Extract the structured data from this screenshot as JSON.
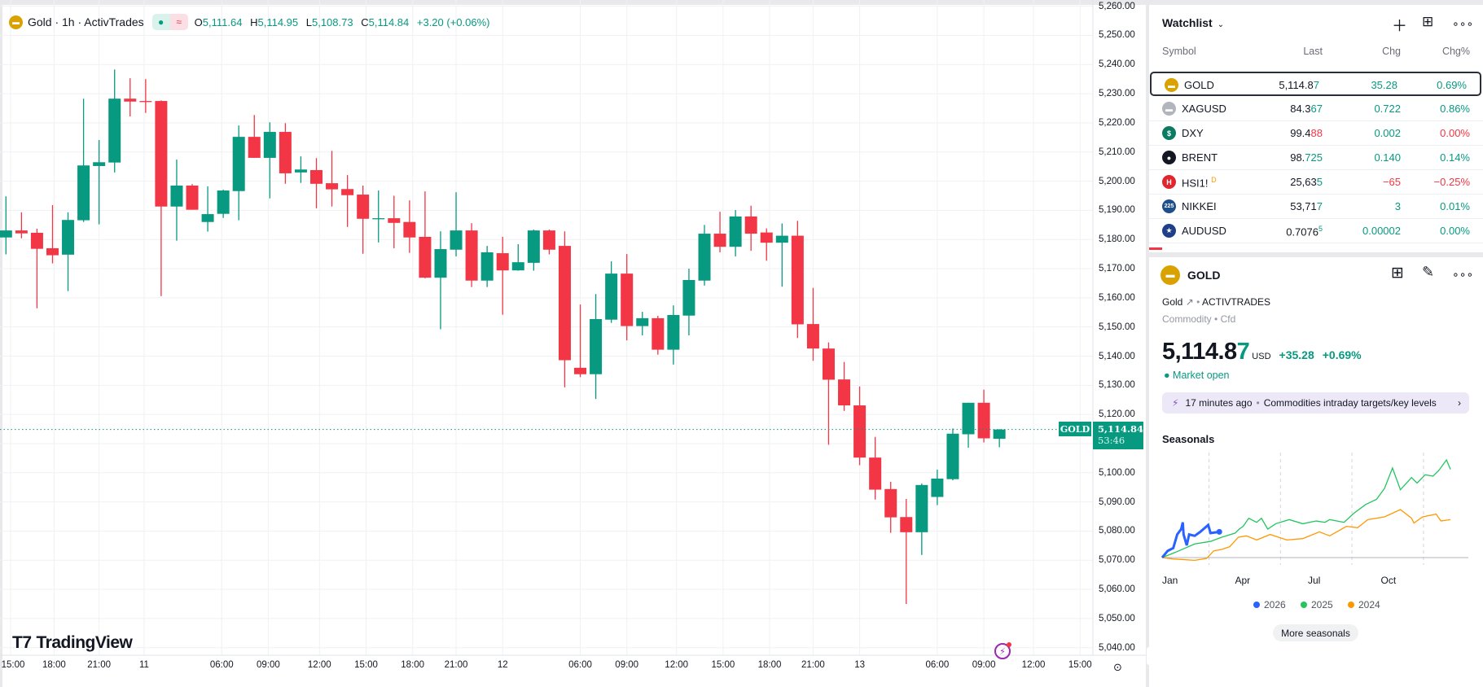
{
  "chart": {
    "legend": {
      "icon": "gold-bars-icon",
      "title": "Gold · 1h · ActivTrades",
      "open_label": "O",
      "open": "5,111.64",
      "high_label": "H",
      "high": "5,114.95",
      "low_label": "L",
      "low": "5,108.73",
      "close_label": "C",
      "close": "5,114.84",
      "change": "+3.20 (+0.06%)"
    },
    "symbol_tag": "GOLD",
    "last_price": "5,114.84",
    "last_price_value": 5114.84,
    "countdown": "53:46",
    "logo": "TradingView",
    "colors": {
      "up": "#089981",
      "down": "#f23645"
    },
    "price_ticks": [
      "5,260.00",
      "5,250.00",
      "5,240.00",
      "5,230.00",
      "5,220.00",
      "5,210.00",
      "5,200.00",
      "5,190.00",
      "5,180.00",
      "5,170.00",
      "5,160.00",
      "5,150.00",
      "5,140.00",
      "5,130.00",
      "5,120.00",
      "5,100.00",
      "5,090.00",
      "5,080.00",
      "5,070.00",
      "5,060.00",
      "5,050.00",
      "5,040.00"
    ],
    "time_ticks": [
      {
        "label": "15:00",
        "bar": 1.3
      },
      {
        "label": "18:00",
        "bar": 4.1
      },
      {
        "label": "21:00",
        "bar": 7
      },
      {
        "label": "11",
        "bar": 9.9
      },
      {
        "label": "06:00",
        "bar": 14.9
      },
      {
        "label": "09:00",
        "bar": 17.9
      },
      {
        "label": "12:00",
        "bar": 21.2
      },
      {
        "label": "15:00",
        "bar": 24.2
      },
      {
        "label": "18:00",
        "bar": 27.2
      },
      {
        "label": "21:00",
        "bar": 30
      },
      {
        "label": "12",
        "bar": 33
      },
      {
        "label": "06:00",
        "bar": 38
      },
      {
        "label": "09:00",
        "bar": 41
      },
      {
        "label": "12:00",
        "bar": 44.2
      },
      {
        "label": "15:00",
        "bar": 47.2
      },
      {
        "label": "18:00",
        "bar": 50.2
      },
      {
        "label": "21:00",
        "bar": 53
      },
      {
        "label": "13",
        "bar": 56
      },
      {
        "label": "06:00",
        "bar": 61
      },
      {
        "label": "09:00",
        "bar": 64
      },
      {
        "label": "12:00",
        "bar": 67.2
      },
      {
        "label": "15:00",
        "bar": 70.2
      }
    ]
  },
  "chart_data": {
    "type": "candlestick",
    "title": "Gold · 1h · ActivTrades",
    "ylim": [
      5037,
      5261
    ],
    "ohlc": [
      [
        5180.7,
        5194.8,
        5174.9,
        5183.1
      ],
      [
        5183.1,
        5189.3,
        5180.4,
        5182.1
      ],
      [
        5182.3,
        5183.7,
        5156.4,
        5176.8
      ],
      [
        5177,
        5191.8,
        5171.8,
        5174.6
      ],
      [
        5174.8,
        5189.3,
        5162.3,
        5186.7
      ],
      [
        5186.6,
        5228.3,
        5186,
        5205.4
      ],
      [
        5205.2,
        5214.1,
        5185.2,
        5206.5
      ],
      [
        5206.4,
        5238.3,
        5203,
        5228.3
      ],
      [
        5228.3,
        5235.3,
        5222.2,
        5227.3
      ],
      [
        5227.5,
        5235,
        5223.4,
        5227.4
      ],
      [
        5227.5,
        5227.7,
        5160.6,
        5191.3
      ],
      [
        5191.3,
        5207.4,
        5179.6,
        5198.5
      ],
      [
        5198.5,
        5199,
        5190.2,
        5190.2
      ],
      [
        5186,
        5198.2,
        5182.7,
        5188.7
      ],
      [
        5188.8,
        5197.1,
        5187.4,
        5196.8
      ],
      [
        5196.6,
        5219.1,
        5186.6,
        5215.2
      ],
      [
        5215.2,
        5222.7,
        5208,
        5208
      ],
      [
        5208,
        5220.2,
        5194.1,
        5216.9
      ],
      [
        5216.9,
        5219.9,
        5199.1,
        5202.7
      ],
      [
        5203,
        5208.5,
        5199.4,
        5204
      ],
      [
        5203.8,
        5207.9,
        5190.7,
        5199.1
      ],
      [
        5199.3,
        5210.4,
        5191.3,
        5197.2
      ],
      [
        5197.3,
        5202.1,
        5184.3,
        5195.2
      ],
      [
        5195.4,
        5198.5,
        5175.1,
        5187.1
      ],
      [
        5187.1,
        5196.8,
        5179,
        5187.3
      ],
      [
        5187.3,
        5195,
        5177,
        5185.7
      ],
      [
        5186,
        5193.4,
        5175.4,
        5180.7
      ],
      [
        5180.9,
        5196.5,
        5166.7,
        5166.9
      ],
      [
        5166.9,
        5182.8,
        5149.2,
        5176.7
      ],
      [
        5176.5,
        5196.2,
        5174.2,
        5183.1
      ],
      [
        5183.1,
        5185.6,
        5163.7,
        5165.9
      ],
      [
        5165.9,
        5177.8,
        5163.7,
        5175.6
      ],
      [
        5175.3,
        5180.9,
        5154.2,
        5169.4
      ],
      [
        5169.4,
        5178.4,
        5169.3,
        5172.2
      ],
      [
        5172,
        5183.4,
        5169.3,
        5183.1
      ],
      [
        5183.1,
        5183.4,
        5174.9,
        5176.5
      ],
      [
        5177.8,
        5182.8,
        5129.3,
        5138.6
      ],
      [
        5136,
        5157.7,
        5132.8,
        5133.8
      ],
      [
        5133.8,
        5161.3,
        5125.3,
        5152.7
      ],
      [
        5152.5,
        5172.5,
        5151.4,
        5168.3
      ],
      [
        5168.3,
        5175,
        5145.4,
        5150.3
      ],
      [
        5150.3,
        5155.2,
        5147.1,
        5153
      ],
      [
        5153,
        5153.8,
        5140.5,
        5142.2
      ],
      [
        5142.2,
        5157.4,
        5137.1,
        5154.1
      ],
      [
        5153.9,
        5170,
        5147.1,
        5166.1
      ],
      [
        5165.9,
        5185,
        5164.2,
        5182
      ],
      [
        5182,
        5189.5,
        5175.6,
        5177.5
      ],
      [
        5177.5,
        5190.1,
        5174.2,
        5187.9
      ],
      [
        5187.9,
        5191.6,
        5176.1,
        5182
      ],
      [
        5182.4,
        5183.8,
        5172.7,
        5178.9
      ],
      [
        5178.9,
        5185.5,
        5163.8,
        5181.3
      ],
      [
        5181.3,
        5186.4,
        5146.2,
        5150.9
      ],
      [
        5151,
        5163.4,
        5138.4,
        5142.6
      ],
      [
        5142.6,
        5144.7,
        5109.6,
        5131.9
      ],
      [
        5132,
        5138,
        5121.2,
        5123.1
      ],
      [
        5123.1,
        5129.6,
        5102.6,
        5105.2
      ],
      [
        5105.2,
        5112.3,
        5090.8,
        5094.2
      ],
      [
        5094.4,
        5096.9,
        5079.4,
        5084.7
      ],
      [
        5084.8,
        5091,
        5055,
        5079.6
      ],
      [
        5079.6,
        5096.3,
        5071.8,
        5095.8
      ],
      [
        5091.7,
        5101.1,
        5088.9,
        5098
      ],
      [
        5097.8,
        5115.2,
        5097.4,
        5113.4
      ],
      [
        5113.2,
        5124,
        5108.6,
        5124
      ],
      [
        5124,
        5128.5,
        5110.4,
        5111.8
      ],
      [
        5111.64,
        5114.95,
        5108.73,
        5114.84
      ]
    ]
  },
  "watchlist": {
    "title": "Watchlist",
    "add_icon": "plus-icon",
    "layout_icon": "table-icon",
    "more_icon": "more-icon",
    "columns": {
      "symbol": "Symbol",
      "last": "Last",
      "chg": "Chg",
      "chgp": "Chg%"
    },
    "rows": [
      {
        "symbol": "GOLD",
        "icon": "gold-icon",
        "icon_color": "#d9a200",
        "icon_text": "▬",
        "last_base": "5,114.8",
        "last_hi": "7",
        "hi_dir": "g",
        "chg": "35.28",
        "chgp": "0.69%",
        "dir": "g",
        "chgp_dir": "g",
        "selected": true
      },
      {
        "symbol": "XAGUSD",
        "icon": "silver-icon",
        "icon_color": "#b2b5be",
        "icon_text": "▬",
        "last_base": "84.3",
        "last_hi": "67",
        "hi_dir": "g",
        "chg": "0.722",
        "chgp": "0.86%",
        "dir": "g",
        "chgp_dir": "g"
      },
      {
        "symbol": "DXY",
        "icon": "dollar-icon",
        "icon_color": "#0b7a63",
        "icon_text": "$",
        "last_base": "99.4",
        "last_hi": "88",
        "hi_dir": "r",
        "chg": "0.002",
        "chgp": "0.00%",
        "dir": "g",
        "chgp_dir": "r"
      },
      {
        "symbol": "BRENT",
        "icon": "oil-drop-icon",
        "icon_color": "#131722",
        "icon_text": "●",
        "last_base": "98.",
        "last_hi": "725",
        "hi_dir": "g",
        "chg": "0.140",
        "chgp": "0.14%",
        "dir": "g",
        "chgp_dir": "g"
      },
      {
        "symbol": "HSI1!",
        "badge": "D",
        "icon": "hsi-icon",
        "icon_color": "#e0252f",
        "icon_text": "H",
        "last_base": "25,63",
        "last_hi": "5",
        "hi_dir": "g",
        "chg": "−65",
        "chgp": "−0.25%",
        "dir": "r",
        "chgp_dir": "r"
      },
      {
        "symbol": "NIKKEI",
        "icon": "nikkei-225-icon",
        "icon_color": "#1f4f8b",
        "icon_text": "225",
        "last_base": "53,71",
        "last_hi": "7",
        "hi_dir": "g",
        "chg": "3",
        "chgp": "0.01%",
        "dir": "g",
        "chgp_dir": "g"
      },
      {
        "symbol": "AUDUSD",
        "icon": "aud-usd-flag-icon",
        "icon_color": "#1f3f8b",
        "icon_text": "★",
        "last_base": "0.7076",
        "last_hi": "5",
        "hi_dir": "g",
        "sup": true,
        "chg": "0.00002",
        "chgp": "0.00%",
        "dir": "g",
        "chgp_dir": "g"
      }
    ]
  },
  "details": {
    "symbol": "GOLD",
    "name": "Gold",
    "exchange": "ACTIVTRADES",
    "type": "Commodity",
    "subtype": "Cfd",
    "price_base": "5,114.8",
    "price_hi": "7",
    "currency": "USD",
    "change": "+35.28",
    "change_pct": "+0.69%",
    "status": "Market open",
    "news": {
      "time": "17 minutes ago",
      "headline": "Commodities intraday targets/key levels"
    },
    "seasonals_title": "Seasonals",
    "months": [
      "Jan",
      "Apr",
      "Jul",
      "Oct"
    ],
    "more_button": "More seasonals",
    "seasonals": {
      "x_unit": "day of year",
      "y_unit": "% change",
      "ylim": [
        -5,
        72
      ],
      "series": [
        {
          "name": "2026",
          "color": "#2962ff",
          "points": [
            [
              0,
              0
            ],
            [
              7,
              4.9
            ],
            [
              14,
              6.9
            ],
            [
              19,
              16.8
            ],
            [
              24,
              20.7
            ],
            [
              26,
              25.6
            ],
            [
              27,
              16.8
            ],
            [
              31,
              8.9
            ],
            [
              34,
              16.8
            ],
            [
              41,
              15.8
            ],
            [
              48,
              18.7
            ],
            [
              58,
              23.7
            ],
            [
              61,
              17.8
            ],
            [
              72,
              18.7
            ]
          ]
        },
        {
          "name": "2025",
          "color": "#22c55e",
          "points": [
            [
              0,
              0
            ],
            [
              17,
              3.9
            ],
            [
              41,
              9.9
            ],
            [
              61,
              11.8
            ],
            [
              75,
              14.8
            ],
            [
              92,
              17.8
            ],
            [
              97,
              20.7
            ],
            [
              102,
              22.7
            ],
            [
              109,
              28.6
            ],
            [
              119,
              25.6
            ],
            [
              125,
              28.6
            ],
            [
              133,
              20.7
            ],
            [
              143,
              24.6
            ],
            [
              160,
              27.6
            ],
            [
              177,
              24.6
            ],
            [
              194,
              26.6
            ],
            [
              205,
              25.6
            ],
            [
              211,
              27.6
            ],
            [
              229,
              25.6
            ],
            [
              242,
              32.5
            ],
            [
              256,
              38.5
            ],
            [
              270,
              42.4
            ],
            [
              280,
              50.3
            ],
            [
              290,
              65.1
            ],
            [
              300,
              49.3
            ],
            [
              314,
              58.2
            ],
            [
              321,
              54.2
            ],
            [
              331,
              60.2
            ],
            [
              341,
              59.2
            ],
            [
              348,
              63.1
            ],
            [
              358,
              71
            ],
            [
              363,
              64.1
            ]
          ]
        },
        {
          "name": "2024",
          "color": "#ff9800",
          "points": [
            [
              0,
              0
            ],
            [
              14,
              -1
            ],
            [
              41,
              -2
            ],
            [
              56,
              -0.6
            ],
            [
              65,
              4.9
            ],
            [
              75,
              5.9
            ],
            [
              85,
              7.9
            ],
            [
              96,
              14.8
            ],
            [
              106,
              15.8
            ],
            [
              119,
              12.8
            ],
            [
              136,
              16.8
            ],
            [
              157,
              12.8
            ],
            [
              177,
              13.8
            ],
            [
              198,
              18.7
            ],
            [
              211,
              15.8
            ],
            [
              232,
              22.7
            ],
            [
              246,
              21.7
            ],
            [
              259,
              27.6
            ],
            [
              280,
              29.6
            ],
            [
              300,
              34.9
            ],
            [
              314,
              28.6
            ],
            [
              317,
              25.1
            ],
            [
              328,
              29.6
            ],
            [
              345,
              31.6
            ],
            [
              351,
              26.6
            ],
            [
              363,
              27.6
            ]
          ]
        }
      ]
    }
  }
}
